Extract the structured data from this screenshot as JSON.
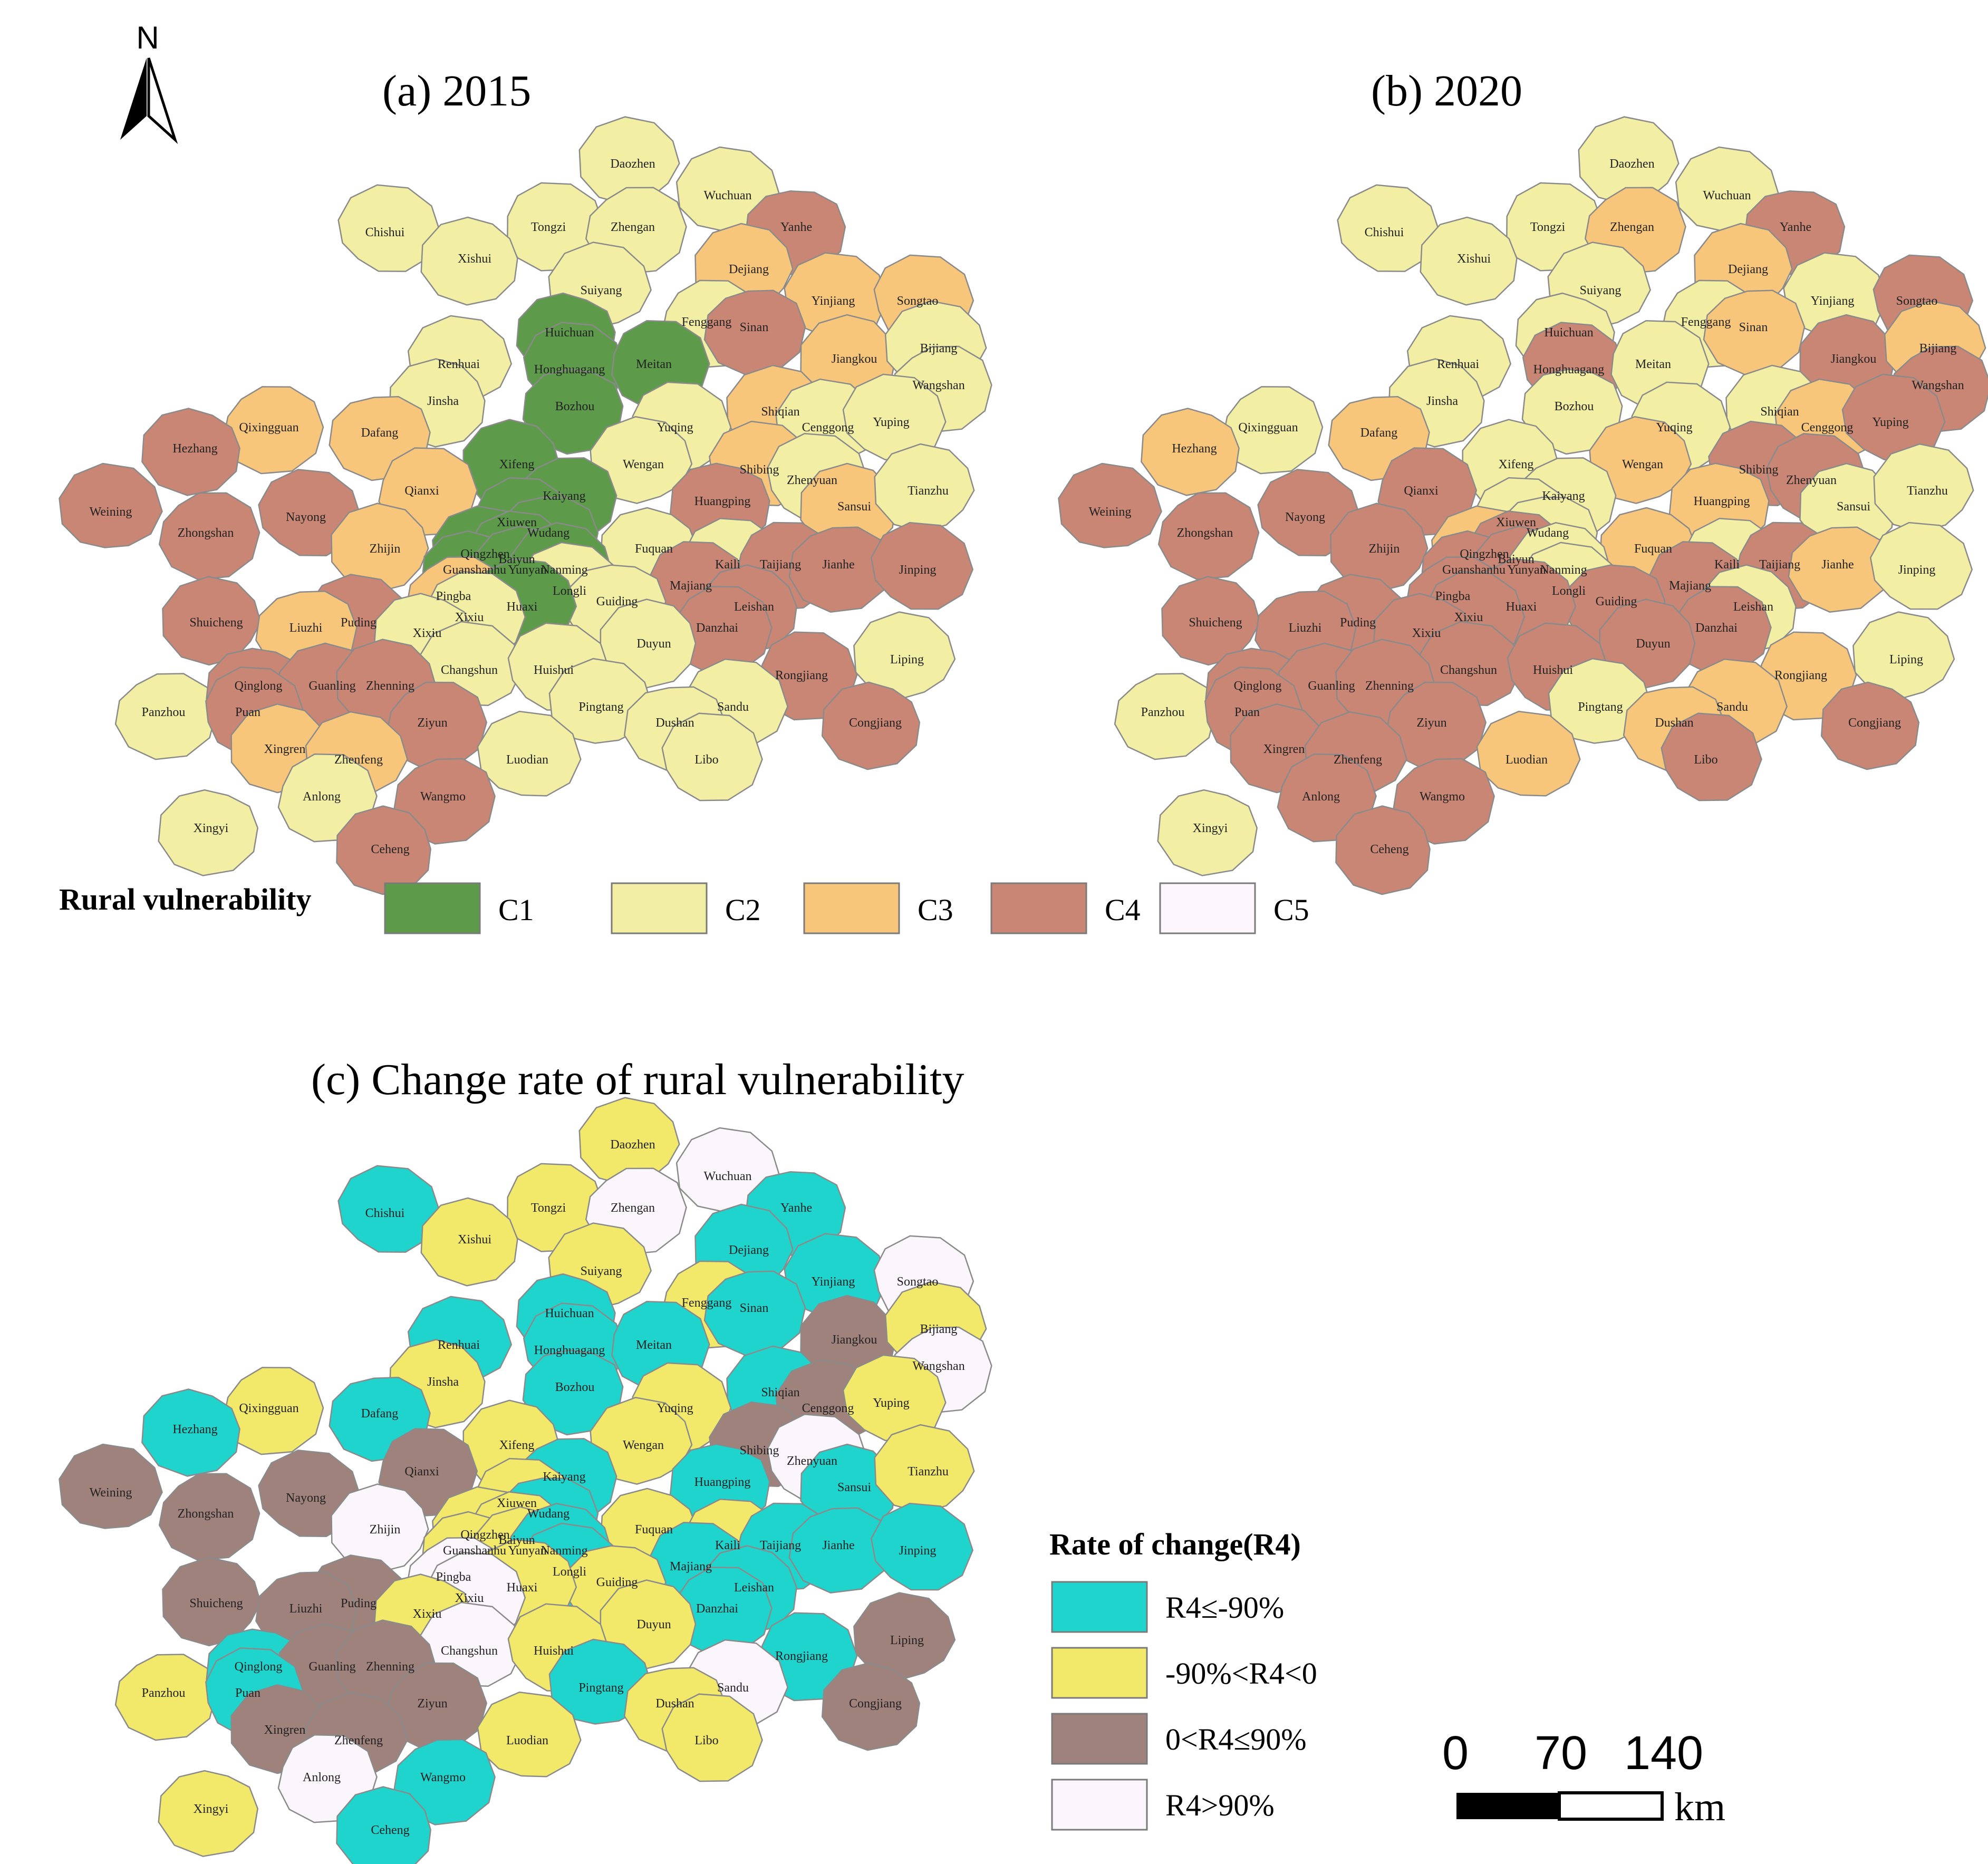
{
  "north_label": "N",
  "panels": [
    {
      "title": "(a) 2015"
    },
    {
      "title": "(b) 2020"
    },
    {
      "title": "(c)  Change rate of rural vulnerability"
    }
  ],
  "vulnerability_legend": {
    "title": "Rural vulnerability",
    "classes": [
      {
        "id": "C1",
        "label": "C1",
        "color": "#5d9a4a"
      },
      {
        "id": "C2",
        "label": "C2",
        "color": "#f2eea3"
      },
      {
        "id": "C3",
        "label": "C3",
        "color": "#f8c67a"
      },
      {
        "id": "C4",
        "label": "C4",
        "color": "#c98674"
      },
      {
        "id": "C5",
        "label": "C5",
        "color": "#fdf6fd"
      }
    ]
  },
  "change_legend": {
    "title": "Rate of  change(R4)",
    "classes": [
      {
        "id": "A",
        "label": "R4≤-90%",
        "color": "#1fd4cc"
      },
      {
        "id": "B",
        "label": "-90%<R4<0",
        "color": "#f2e86a"
      },
      {
        "id": "C",
        "label": "0<R4≤90%",
        "color": "#a0827c"
      },
      {
        "id": "D",
        "label": "R4>90%",
        "color": "#fbf6fb"
      }
    ]
  },
  "scale_bar": {
    "ticks": [
      "0",
      "70",
      "140"
    ],
    "unit": "km"
  },
  "counties": [
    {
      "name": "Daozhen",
      "y2015": "C2",
      "y2020": "C2",
      "change": "B"
    },
    {
      "name": "Wuchuan",
      "y2015": "C2",
      "y2020": "C2",
      "change": "D"
    },
    {
      "name": "Chishui",
      "y2015": "C2",
      "y2020": "C2",
      "change": "A"
    },
    {
      "name": "Tongzi",
      "y2015": "C2",
      "y2020": "C2",
      "change": "B"
    },
    {
      "name": "Zhengan",
      "y2015": "C2",
      "y2020": "C3",
      "change": "D"
    },
    {
      "name": "Yanhe",
      "y2015": "C4",
      "y2020": "C4",
      "change": "A"
    },
    {
      "name": "Xishui",
      "y2015": "C2",
      "y2020": "C2",
      "change": "B"
    },
    {
      "name": "Dejiang",
      "y2015": "C3",
      "y2020": "C3",
      "change": "A"
    },
    {
      "name": "Suiyang",
      "y2015": "C2",
      "y2020": "C2",
      "change": "B"
    },
    {
      "name": "Yinjiang",
      "y2015": "C3",
      "y2020": "C2",
      "change": "A"
    },
    {
      "name": "Songtao",
      "y2015": "C3",
      "y2020": "C4",
      "change": "D"
    },
    {
      "name": "Fenggang",
      "y2015": "C2",
      "y2020": "C2",
      "change": "B"
    },
    {
      "name": "Sinan",
      "y2015": "C4",
      "y2020": "C3",
      "change": "A"
    },
    {
      "name": "Huichuan",
      "y2015": "C1",
      "y2020": "C2",
      "change": "A"
    },
    {
      "name": "Jiangkou",
      "y2015": "C3",
      "y2020": "C4",
      "change": "C"
    },
    {
      "name": "Bijiang",
      "y2015": "C2",
      "y2020": "C3",
      "change": "B"
    },
    {
      "name": "Renhuai",
      "y2015": "C2",
      "y2020": "C2",
      "change": "A"
    },
    {
      "name": "Honghuagang",
      "y2015": "C1",
      "y2020": "C4",
      "change": "A"
    },
    {
      "name": "Meitan",
      "y2015": "C1",
      "y2020": "C2",
      "change": "A"
    },
    {
      "name": "Wangshan",
      "y2015": "C2",
      "y2020": "C4",
      "change": "D"
    },
    {
      "name": "Bozhou",
      "y2015": "C1",
      "y2020": "C2",
      "change": "A"
    },
    {
      "name": "Jinsha",
      "y2015": "C2",
      "y2020": "C2",
      "change": "B"
    },
    {
      "name": "Shiqian",
      "y2015": "C3",
      "y2020": "C2",
      "change": "A"
    },
    {
      "name": "Cenggong",
      "y2015": "C2",
      "y2020": "C3",
      "change": "C"
    },
    {
      "name": "Yuping",
      "y2015": "C2",
      "y2020": "C4",
      "change": "B"
    },
    {
      "name": "Yuqing",
      "y2015": "C2",
      "y2020": "C2",
      "change": "B"
    },
    {
      "name": "Qixingguan",
      "y2015": "C3",
      "y2020": "C2",
      "change": "B"
    },
    {
      "name": "Dafang",
      "y2015": "C3",
      "y2020": "C3",
      "change": "A"
    },
    {
      "name": "Hezhang",
      "y2015": "C4",
      "y2020": "C3",
      "change": "A"
    },
    {
      "name": "Xifeng",
      "y2015": "C1",
      "y2020": "C2",
      "change": "B"
    },
    {
      "name": "Wengan",
      "y2015": "C2",
      "y2020": "C3",
      "change": "B"
    },
    {
      "name": "Shibing",
      "y2015": "C3",
      "y2020": "C4",
      "change": "C"
    },
    {
      "name": "Zhenyuan",
      "y2015": "C2",
      "y2020": "C4",
      "change": "D"
    },
    {
      "name": "Qianxi",
      "y2015": "C3",
      "y2020": "C4",
      "change": "C"
    },
    {
      "name": "Kaiyang",
      "y2015": "C1",
      "y2020": "C2",
      "change": "A"
    },
    {
      "name": "Huangping",
      "y2015": "C4",
      "y2020": "C3",
      "change": "A"
    },
    {
      "name": "Sansui",
      "y2015": "C3",
      "y2020": "C2",
      "change": "A"
    },
    {
      "name": "Tianzhu",
      "y2015": "C2",
      "y2020": "C2",
      "change": "B"
    },
    {
      "name": "Weining",
      "y2015": "C4",
      "y2020": "C4",
      "change": "C"
    },
    {
      "name": "Nayong",
      "y2015": "C4",
      "y2020": "C4",
      "change": "C"
    },
    {
      "name": "Xiuwen",
      "y2015": "C1",
      "y2020": "C2",
      "change": "B"
    },
    {
      "name": "Zhongshan",
      "y2015": "C4",
      "y2020": "C4",
      "change": "C"
    },
    {
      "name": "Wudang",
      "y2015": "C1",
      "y2020": "C2",
      "change": "A"
    },
    {
      "name": "Fuquan",
      "y2015": "C2",
      "y2020": "C3",
      "change": "B"
    },
    {
      "name": "Zhijin",
      "y2015": "C3",
      "y2020": "C4",
      "change": "D"
    },
    {
      "name": "Qingzhen",
      "y2015": "C1",
      "y2020": "C3",
      "change": "B"
    },
    {
      "name": "Baiyun",
      "y2015": "C1",
      "y2020": "C4",
      "change": "B"
    },
    {
      "name": "Kaili",
      "y2015": "C2",
      "y2020": "C2",
      "change": "B"
    },
    {
      "name": "Taijiang",
      "y2015": "C4",
      "y2020": "C4",
      "change": "A"
    },
    {
      "name": "Jianhe",
      "y2015": "C4",
      "y2020": "C3",
      "change": "A"
    },
    {
      "name": "Guanshanhu",
      "y2015": "C1",
      "y2020": "C4",
      "change": "B"
    },
    {
      "name": "Yunyan",
      "y2015": "C1",
      "y2020": "C4",
      "change": "B"
    },
    {
      "name": "Nanming",
      "y2015": "C1",
      "y2020": "C2",
      "change": "A"
    },
    {
      "name": "Longli",
      "y2015": "C2",
      "y2020": "C2",
      "change": "A"
    },
    {
      "name": "Jinping",
      "y2015": "C4",
      "y2020": "C2",
      "change": "A"
    },
    {
      "name": "Majiang",
      "y2015": "C4",
      "y2020": "C4",
      "change": "A"
    },
    {
      "name": "Pingba",
      "y2015": "C3",
      "y2020": "C4",
      "change": "D"
    },
    {
      "name": "Guiding",
      "y2015": "C2",
      "y2020": "C4",
      "change": "B"
    },
    {
      "name": "Leishan",
      "y2015": "C4",
      "y2020": "C2",
      "change": "A"
    },
    {
      "name": "Shuicheng",
      "y2015": "C4",
      "y2020": "C4",
      "change": "C"
    },
    {
      "name": "Puding",
      "y2015": "C4",
      "y2020": "C4",
      "change": "C"
    },
    {
      "name": "Huaxi",
      "y2015": "C1",
      "y2020": "C4",
      "change": "B"
    },
    {
      "name": "Xixiu",
      "y2015": "C2",
      "y2020": "C4",
      "change": "D"
    },
    {
      "name": "Danzhai",
      "y2015": "C4",
      "y2020": "C4",
      "change": "A"
    },
    {
      "name": "Liuzhi",
      "y2015": "C3",
      "y2020": "C4",
      "change": "C"
    },
    {
      "name": "Xixiu",
      "y2015": "C2",
      "y2020": "C4",
      "change": "B"
    },
    {
      "name": "Duyun",
      "y2015": "C2",
      "y2020": "C4",
      "change": "B"
    },
    {
      "name": "Liping",
      "y2015": "C2",
      "y2020": "C2",
      "change": "C"
    },
    {
      "name": "Changshun",
      "y2015": "C2",
      "y2020": "C4",
      "change": "D"
    },
    {
      "name": "Huishui",
      "y2015": "C2",
      "y2020": "C4",
      "change": "B"
    },
    {
      "name": "Rongjiang",
      "y2015": "C4",
      "y2020": "C3",
      "change": "A"
    },
    {
      "name": "Panzhou",
      "y2015": "C2",
      "y2020": "C2",
      "change": "B"
    },
    {
      "name": "Qinglong",
      "y2015": "C4",
      "y2020": "C4",
      "change": "A"
    },
    {
      "name": "Guanling",
      "y2015": "C4",
      "y2020": "C4",
      "change": "C"
    },
    {
      "name": "Zhenning",
      "y2015": "C4",
      "y2020": "C4",
      "change": "C"
    },
    {
      "name": "Pingtang",
      "y2015": "C2",
      "y2020": "C2",
      "change": "A"
    },
    {
      "name": "Sandu",
      "y2015": "C2",
      "y2020": "C3",
      "change": "D"
    },
    {
      "name": "Puan",
      "y2015": "C4",
      "y2020": "C4",
      "change": "A"
    },
    {
      "name": "Ziyun",
      "y2015": "C4",
      "y2020": "C4",
      "change": "C"
    },
    {
      "name": "Dushan",
      "y2015": "C2",
      "y2020": "C3",
      "change": "B"
    },
    {
      "name": "Congjiang",
      "y2015": "C4",
      "y2020": "C4",
      "change": "C"
    },
    {
      "name": "Xingren",
      "y2015": "C3",
      "y2020": "C4",
      "change": "C"
    },
    {
      "name": "Zhenfeng",
      "y2015": "C3",
      "y2020": "C4",
      "change": "C"
    },
    {
      "name": "Luodian",
      "y2015": "C2",
      "y2020": "C3",
      "change": "B"
    },
    {
      "name": "Libo",
      "y2015": "C2",
      "y2020": "C4",
      "change": "B"
    },
    {
      "name": "Anlong",
      "y2015": "C2",
      "y2020": "C4",
      "change": "D"
    },
    {
      "name": "Wangmo",
      "y2015": "C4",
      "y2020": "C4",
      "change": "A"
    },
    {
      "name": "Xingyi",
      "y2015": "C2",
      "y2020": "C2",
      "change": "B"
    },
    {
      "name": "Ceheng",
      "y2015": "C4",
      "y2020": "C4",
      "change": "A"
    }
  ]
}
